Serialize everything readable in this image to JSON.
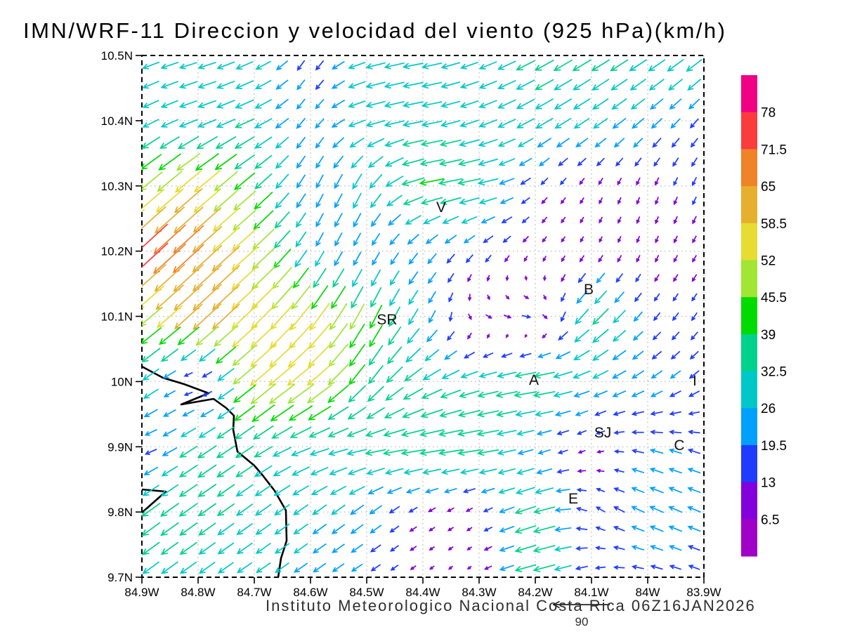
{
  "title": "IMN/WRF-11 Direccion y velocidad del viento (925 hPa)(km/h)",
  "footer": {
    "text": "Instituto Meteorologico Nacional Costa Rica 06Z16JAN2026",
    "ref_arrow_label": "90",
    "ref_arrow_speed": 90
  },
  "chart_data": {
    "type": "vector_field",
    "units": "km/h",
    "lon_range": [
      -84.9,
      -83.9
    ],
    "lat_range": [
      9.7,
      10.5
    ],
    "lon_ticks": [
      {
        "value": -84.9,
        "label": "84.9W"
      },
      {
        "value": -84.8,
        "label": "84.8W"
      },
      {
        "value": -84.7,
        "label": "84.7W"
      },
      {
        "value": -84.6,
        "label": "84.6W"
      },
      {
        "value": -84.5,
        "label": "84.5W"
      },
      {
        "value": -84.4,
        "label": "84.4W"
      },
      {
        "value": -84.3,
        "label": "84.3W"
      },
      {
        "value": -84.2,
        "label": "84.2W"
      },
      {
        "value": -84.1,
        "label": "84.1W"
      },
      {
        "value": -84.0,
        "label": "84W"
      },
      {
        "value": -83.9,
        "label": "83.9W"
      }
    ],
    "lat_ticks": [
      {
        "value": 10.5,
        "label": "10.5N"
      },
      {
        "value": 10.4,
        "label": "10.4N"
      },
      {
        "value": 10.3,
        "label": "10.3N"
      },
      {
        "value": 10.2,
        "label": "10.2N"
      },
      {
        "value": 10.1,
        "label": "10.1N"
      },
      {
        "value": 10.0,
        "label": "10N"
      },
      {
        "value": 9.9,
        "label": "9.9N"
      },
      {
        "value": 9.8,
        "label": "9.8N"
      },
      {
        "value": 9.7,
        "label": "9.7N"
      }
    ],
    "speed_levels": [
      6.5,
      13,
      19.5,
      26,
      32.5,
      39,
      45.5,
      52,
      58.5,
      65,
      71.5,
      78
    ],
    "speed_colors": [
      "#A000C8",
      "#8200DC",
      "#1E3CFF",
      "#00A0FF",
      "#00C8C8",
      "#00D28C",
      "#00DC00",
      "#A0E632",
      "#E6DC32",
      "#E6AF2D",
      "#F08228",
      "#FA3C3C",
      "#F00082"
    ],
    "colorbar_labels": [
      "78",
      "71.5",
      "65",
      "58.5",
      "52",
      "45.5",
      "39",
      "32.5",
      "26",
      "19.5",
      "13",
      "6.5"
    ],
    "station_labels": [
      {
        "label": "V",
        "lon": -84.3675,
        "lat": 10.2674
      },
      {
        "label": "B",
        "lon": -84.105,
        "lat": 10.1414
      },
      {
        "label": "SR",
        "lon": -84.4638,
        "lat": 10.0951
      },
      {
        "label": "A",
        "lon": -84.2025,
        "lat": 10.0026
      },
      {
        "label": "I",
        "lon": -83.9163,
        "lat": 10.0015
      },
      {
        "label": "SJ",
        "lon": -84.08,
        "lat": 9.9218
      },
      {
        "label": "C",
        "lon": -83.9438,
        "lat": 9.9024
      },
      {
        "label": "E",
        "lon": -84.1325,
        "lat": 9.8206
      }
    ],
    "coastline": [
      [
        -84.9,
        10.023
      ],
      [
        -84.8625,
        10.0058
      ],
      [
        -84.825,
        9.9961
      ],
      [
        -84.7813,
        9.9821
      ],
      [
        -84.83,
        9.9649
      ],
      [
        -84.7725,
        9.9735
      ],
      [
        -84.75,
        9.9595
      ],
      [
        -84.7363,
        9.9477
      ],
      [
        -84.7375,
        9.9261
      ],
      [
        -84.73,
        9.8927
      ],
      [
        -84.7,
        9.8712
      ],
      [
        -84.685,
        9.8561
      ],
      [
        -84.6638,
        9.8324
      ],
      [
        -84.6438,
        9.8023
      ],
      [
        -84.6425,
        9.756
      ],
      [
        -84.6525,
        9.7291
      ],
      [
        -84.6575,
        9.7
      ]
    ],
    "coastline2": [
      [
        -84.9,
        9.8346
      ],
      [
        -84.8575,
        9.8314
      ],
      [
        -84.9,
        9.7991
      ]
    ],
    "wind_grid": {
      "lats": [
        10.5,
        10.4,
        10.3,
        10.2,
        10.1,
        10.0,
        9.9,
        9.8,
        9.7
      ],
      "lons": [
        -84.9,
        -84.8,
        -84.7,
        -84.6,
        -84.5,
        -84.4,
        -84.3,
        -84.2,
        -84.1,
        -84.0,
        -83.9
      ],
      "u": [
        [
          -26,
          -28,
          -26,
          -8,
          -30,
          -32,
          -26,
          -30,
          -29,
          -28,
          -26
        ],
        [
          -24,
          -28,
          -30,
          -10,
          -30,
          -32,
          -28,
          -28,
          -24,
          -18,
          -12
        ],
        [
          -36,
          -44,
          -30,
          -10,
          -14,
          -40,
          -36,
          -10,
          -5,
          -4,
          -6
        ],
        [
          -58,
          -48,
          -40,
          -12,
          -10,
          -14,
          -12,
          -6,
          -4,
          -4,
          -6
        ],
        [
          -34,
          -46,
          -40,
          -34,
          -20,
          -14,
          8,
          14,
          -28,
          -10,
          -8
        ],
        [
          -28,
          -5,
          -42,
          -44,
          -22,
          -30,
          -30,
          -40,
          -25,
          -18,
          -15
        ],
        [
          -14,
          -30,
          -28,
          -30,
          -32,
          -40,
          -38,
          -20,
          -8,
          -20,
          -18
        ],
        [
          -30,
          -28,
          -25,
          -22,
          -20,
          -10,
          -8,
          -38,
          -12,
          -22,
          -20
        ],
        [
          -25,
          -25,
          -22,
          -20,
          -15,
          -6,
          -5,
          -38,
          -15,
          -18,
          -16
        ]
      ],
      "v": [
        [
          -10,
          -8,
          -12,
          -16,
          -8,
          -6,
          -10,
          -16,
          -18,
          -18,
          -20
        ],
        [
          -12,
          -10,
          -14,
          -16,
          -8,
          -6,
          -10,
          -16,
          -16,
          -16,
          -14
        ],
        [
          -30,
          -38,
          -26,
          -20,
          -26,
          -8,
          -7,
          -10,
          -9,
          -11,
          -13
        ],
        [
          -54,
          -44,
          -36,
          -22,
          -18,
          -16,
          -12,
          -8,
          -8,
          -10,
          -10
        ],
        [
          -28,
          -42,
          -38,
          -44,
          -40,
          -22,
          -6,
          -2,
          -28,
          -12,
          -12
        ],
        [
          -20,
          2,
          -36,
          -34,
          -30,
          -18,
          -8,
          -6,
          -10,
          -12,
          -12
        ],
        [
          -4,
          -20,
          -18,
          -10,
          -6,
          -6,
          -6,
          -6,
          -4,
          5,
          6
        ],
        [
          -22,
          -20,
          -18,
          -16,
          -15,
          -6,
          -5,
          -12,
          8,
          10,
          8
        ],
        [
          -18,
          -18,
          -15,
          -14,
          -10,
          -5,
          -4,
          -10,
          -5,
          4,
          6
        ]
      ]
    }
  }
}
